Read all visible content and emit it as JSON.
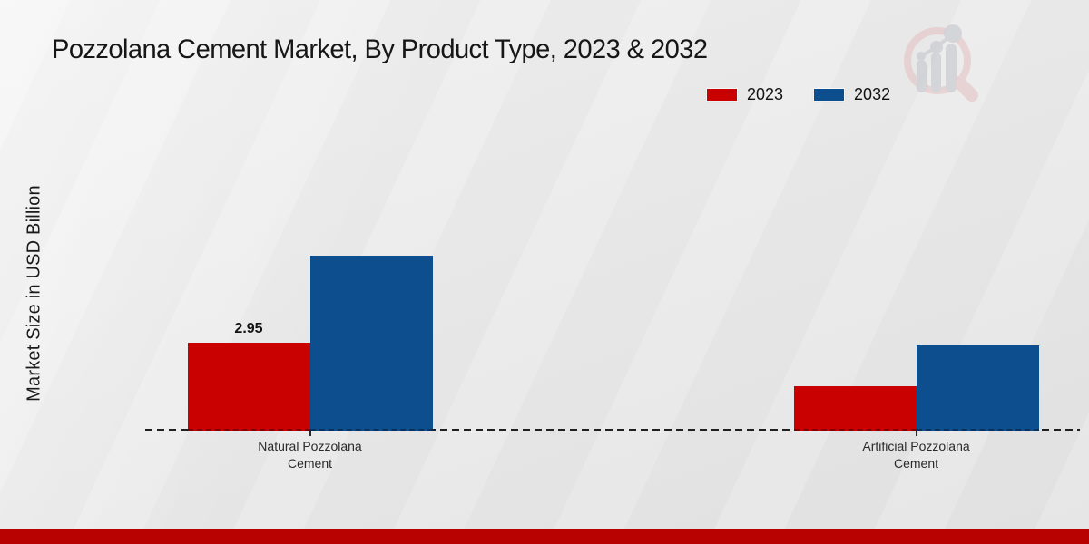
{
  "title": "Pozzolana Cement Market, By Product Type, 2023 & 2032",
  "legend": {
    "items": [
      {
        "label": "2023",
        "color": "#c90101"
      },
      {
        "label": "2032",
        "color": "#0d4e8f"
      }
    ]
  },
  "chart_data": {
    "type": "bar",
    "title": "Pozzolana Cement Market, By Product Type, 2023 & 2032",
    "xlabel": "",
    "ylabel": "Market Size in USD Billion",
    "categories": [
      "Natural Pozzolana Cement",
      "Artificial Pozzolana Cement"
    ],
    "series": [
      {
        "name": "2023",
        "color": "#c90101",
        "values": [
          2.95,
          1.5
        ]
      },
      {
        "name": "2032",
        "color": "#0d4e8f",
        "values": [
          5.87,
          2.85
        ]
      }
    ],
    "value_labels": [
      {
        "series": "2023",
        "category_index": 0,
        "text": "2.95"
      }
    ],
    "ylim": [
      0,
      6.5
    ],
    "grid": false,
    "legend_position": "top-right",
    "axis_style": "dashed-baseline"
  },
  "branding": {
    "logo": "magnifier-bar-chart-logo",
    "accent_bar_color": "#b80101"
  }
}
